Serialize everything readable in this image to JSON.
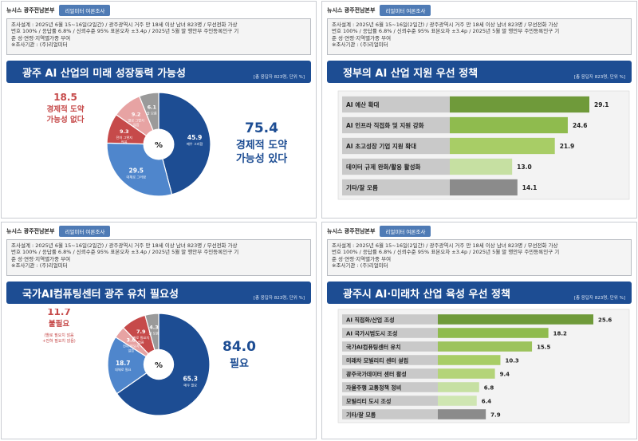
{
  "panels": [
    {
      "header": {
        "brand": "뉴시스 광주전남본부",
        "tag": "리얼미터 여론조사"
      },
      "survey": [
        "조사설계 : 2025년 6월 15~16일(2일간) / 광주광역시 거주 만 18세 이상 남녀 823명 / 무선전화 가상",
        "번호 100% / 응답률 6.8% / 신뢰수준 95% 표본오차 ±3.4p / 2025년 5월 말 행안부 주민등록인구 기",
        "준 성·연령·지역별가중 부여",
        "※조사기관 : (주)리얼미터"
      ],
      "title": "광주 AI 산업의 미래 성장동력 가능성",
      "note": "[총 응답자 823명, 단위 %]"
    },
    {
      "header": {
        "brand": "뉴시스 광주전남본부",
        "tag": "리얼미터 여론조사"
      },
      "survey": [
        "조사설계 : 2025년 6월 15~16일(2일간) / 광주광역시 거주 만 18세 이상 남녀 823명 / 무선전화 가상",
        "번호 100% / 응답률 6.8% / 신뢰수준 95% 표본오차 ±3.4p / 2025년 5월 말 행안부 주민등록인구 기",
        "준 성·연령·지역별가중 부여",
        "※조사기관 : (주)리얼미터"
      ],
      "title": "정부의 AI 산업 지원 우선 정책",
      "note": "[총 응답자 823명, 단위 %]"
    },
    {
      "header": {
        "brand": "뉴시스 광주전남본부",
        "tag": "리얼미터 여론조사"
      },
      "survey": [
        "조사설계 : 2025년 6월 15~16일(2일간) / 광주광역시 거주 만 18세 이상 남녀 823명 / 무선전화 가상",
        "번호 100% / 응답률 6.8% / 신뢰수준 95% 표본오차 ±3.4p / 2025년 5월 말 행안부 주민등록인구 기",
        "준 성·연령·지역별가중 부여",
        "※조사기관 : (주)리얼미터"
      ],
      "title": "국가AI컴퓨팅센터 광주 유치 필요성",
      "note": "[총 응답자 823명, 단위 %]"
    },
    {
      "header": {
        "brand": "뉴시스 광주전남본부",
        "tag": "리얼미터 여론조사"
      },
      "survey": [
        "조사설계 : 2025년 6월 15~16일(2일간) / 광주광역시 거주 만 18세 이상 남녀 823명 / 무선전화 가상",
        "번호 100% / 응답률 6.8% / 신뢰수준 95% 표본오차 ±3.4p / 2025년 5월 말 행안부 주민등록인구 기",
        "준 성·연령·지역별가중 부여",
        "※조사기관 : (주)리얼미터"
      ],
      "title": "광주시 AI·미래차 산업 육성 우선 정책",
      "note": "[총 응답자 823명, 단위 %]"
    }
  ],
  "chart_data": [
    {
      "type": "pie",
      "title": "광주 AI 산업의 미래 성장동력 가능성",
      "center_label": "%",
      "slices": [
        {
          "label": "매우 그러함",
          "value": 45.9,
          "color": "#1d4d93"
        },
        {
          "label": "대체로 그러함",
          "value": 29.5,
          "color": "#4f86cc"
        },
        {
          "label": "전혀 그렇지 않음",
          "value": 9.3,
          "color": "#c64a4a"
        },
        {
          "label": "별로 그렇지 않음",
          "value": 9.2,
          "color": "#e7a3a3"
        },
        {
          "label": "잘 모름",
          "value": 6.1,
          "color": "#9a9a9a"
        }
      ],
      "summary_positive": {
        "value": "75.4",
        "label": "경제적 도약 가능성 있다"
      },
      "summary_negative": {
        "value": "18.5",
        "label": "경제적 도약 가능성 없다"
      }
    },
    {
      "type": "bar",
      "title": "정부의 AI 산업 지원 우선 정책",
      "categories": [
        "AI 예산 확대",
        "AI 인프라 직접화 및 지원 강화",
        "AI 초고성장 기업 지원 확대",
        "데이터 규제 완화/활용 활성화",
        "기타/잘 모름"
      ],
      "values": [
        29.1,
        24.6,
        21.9,
        13.0,
        14.1
      ],
      "value_labels": [
        "29.1",
        "24.6",
        "21.9",
        "13.0",
        "14.1"
      ],
      "colors": [
        "#6f9a3a",
        "#8fbb4e",
        "#a8cd66",
        "#c6e0a2",
        "#8b8b8b"
      ]
    },
    {
      "type": "pie",
      "title": "국가AI컴퓨팅센터 광주 유치 필요성",
      "center_label": "%",
      "slices": [
        {
          "label": "매우 필요",
          "value": 65.3,
          "color": "#1d4d93"
        },
        {
          "label": "대체로 필요",
          "value": 18.7,
          "color": "#4f86cc"
        },
        {
          "label": "전혀 필요치 않음",
          "value": 3.8,
          "color": "#e7a3a3"
        },
        {
          "label": "별로 필요치 않음",
          "value": 7.9,
          "color": "#c64a4a"
        },
        {
          "label": "잘 모름",
          "value": 4.3,
          "color": "#9a9a9a"
        }
      ],
      "summary_positive": {
        "value": "84.0",
        "label": "필요"
      },
      "summary_negative": {
        "value": "11.7",
        "label": "불필요",
        "sub": "(별로 필요치 않음 +전혀 필요치 않음)"
      }
    },
    {
      "type": "bar",
      "title": "광주시 AI·미래차 산업 육성 우선 정책",
      "categories": [
        "AI 직접화/산업 조성",
        "AI 국가시범도시 조성",
        "국가AI컴퓨팅센터 유치",
        "미래차 모빌리티 센터 설립",
        "광주국가데이터 센터 활성",
        "자율주행 교통정책 정비",
        "모빌리티 도시 조성",
        "기타/잘 모름"
      ],
      "values": [
        25.6,
        18.2,
        15.5,
        10.3,
        9.4,
        6.8,
        6.4,
        7.9
      ],
      "value_labels": [
        "25.6",
        "18.2",
        "15.5",
        "10.3",
        "9.4",
        "6.8",
        "6.4",
        "7.9"
      ],
      "colors": [
        "#6f9a3a",
        "#8fbb4e",
        "#9cc35c",
        "#a8cd66",
        "#b4d479",
        "#c6e0a2",
        "#cfe6b2",
        "#8b8b8b"
      ]
    }
  ]
}
